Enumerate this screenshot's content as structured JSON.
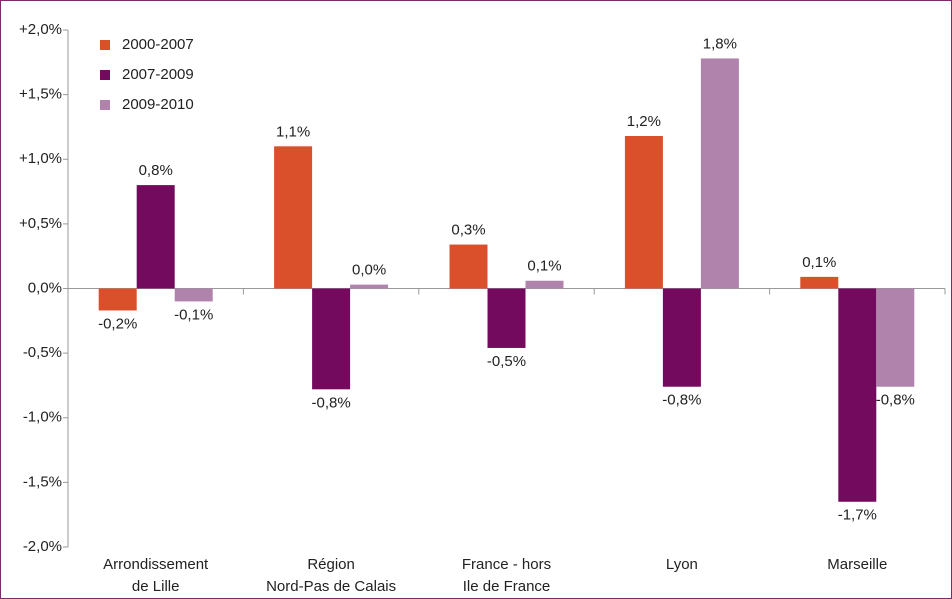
{
  "chart_data": {
    "type": "bar",
    "categories": [
      [
        "Arrondissement",
        "de Lille"
      ],
      [
        "Région",
        "Nord-Pas de Calais"
      ],
      [
        "France - hors",
        "Ile de France"
      ],
      [
        "Lyon"
      ],
      [
        "Marseille"
      ]
    ],
    "series": [
      {
        "name": "2000-2007",
        "color": "#d9502a",
        "values": [
          -0.17,
          1.1,
          0.34,
          1.18,
          0.09
        ],
        "value_labels": [
          "-0,2%",
          "1,1%",
          "0,3%",
          "1,2%",
          "0,1%"
        ]
      },
      {
        "name": "2007-2009",
        "color": "#730a5e",
        "values": [
          0.8,
          -0.78,
          -0.46,
          -0.76,
          -1.65
        ],
        "value_labels": [
          "0,8%",
          "-0,8%",
          "-0,5%",
          "-0,8%",
          "-1,7%"
        ]
      },
      {
        "name": "2009-2010",
        "color": "#b083ac",
        "values": [
          -0.1,
          0.03,
          0.06,
          1.78,
          -0.76
        ],
        "value_labels": [
          "-0,1%",
          "0,0%",
          "0,1%",
          "1,8%",
          "-0,8%"
        ]
      }
    ],
    "ylim": [
      -2,
      2
    ],
    "yticks": [
      {
        "value": -2,
        "label": "-2,0%"
      },
      {
        "value": -1.5,
        "label": "-1,5%"
      },
      {
        "value": -1,
        "label": "-1,0%"
      },
      {
        "value": -0.5,
        "label": "-0,5%"
      },
      {
        "value": 0,
        "label": "0,0%"
      },
      {
        "value": 0.5,
        "label": "+0,5%"
      },
      {
        "value": 1,
        "label": "+1,0%"
      },
      {
        "value": 1.5,
        "label": "+1,5%"
      },
      {
        "value": 2,
        "label": "+2,0%"
      }
    ],
    "grid": false,
    "legend": "top-left"
  }
}
